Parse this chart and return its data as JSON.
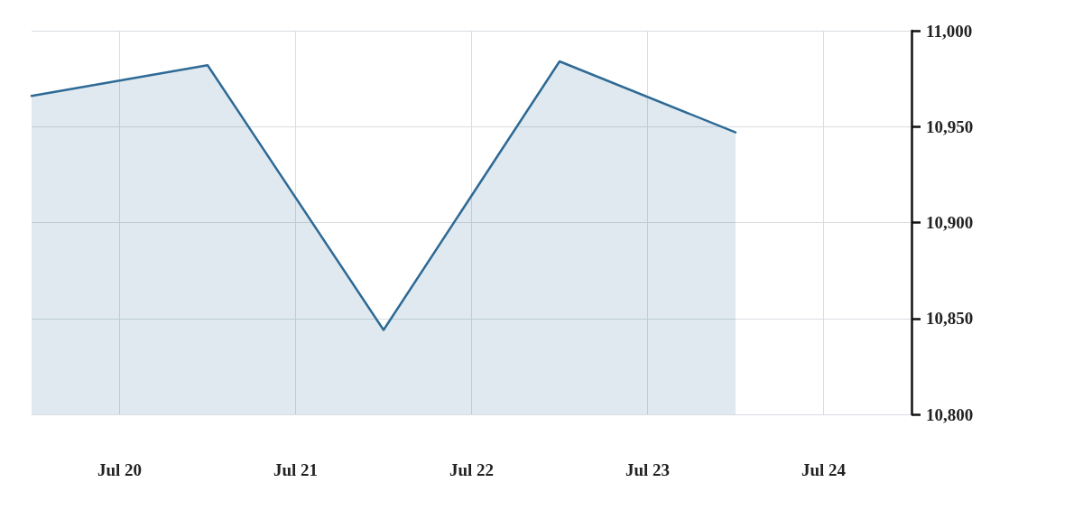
{
  "chart_data": {
    "type": "area",
    "x": [
      "--07-19T12:00",
      "--07-20T12:00",
      "--07-21T12:00",
      "--07-22T12:00",
      "--07-23T12:00"
    ],
    "series": [
      {
        "color": "#2e6a96",
        "values": [
          10966,
          10982,
          10844,
          10984,
          10947
        ]
      }
    ],
    "xlim": [
      "--07-19T12:00",
      "--07-24T12:00"
    ],
    "xticks": [
      {
        "value": "--07-20",
        "label": "Jul 20"
      },
      {
        "value": "--07-21",
        "label": "Jul 21"
      },
      {
        "value": "--07-22",
        "label": "Jul 22"
      },
      {
        "value": "--07-23",
        "label": "Jul 23"
      },
      {
        "value": "--07-24",
        "label": "Jul 24"
      }
    ],
    "ylim": [
      10800,
      11000
    ],
    "yticks": [
      {
        "value": 10800,
        "label": "10,800"
      },
      {
        "value": 10850,
        "label": "10,850"
      },
      {
        "value": 10900,
        "label": "10,900"
      },
      {
        "value": 10950,
        "label": "10,950"
      },
      {
        "value": 11000,
        "label": "11,000"
      }
    ],
    "grid": true,
    "marker": "none"
  }
}
